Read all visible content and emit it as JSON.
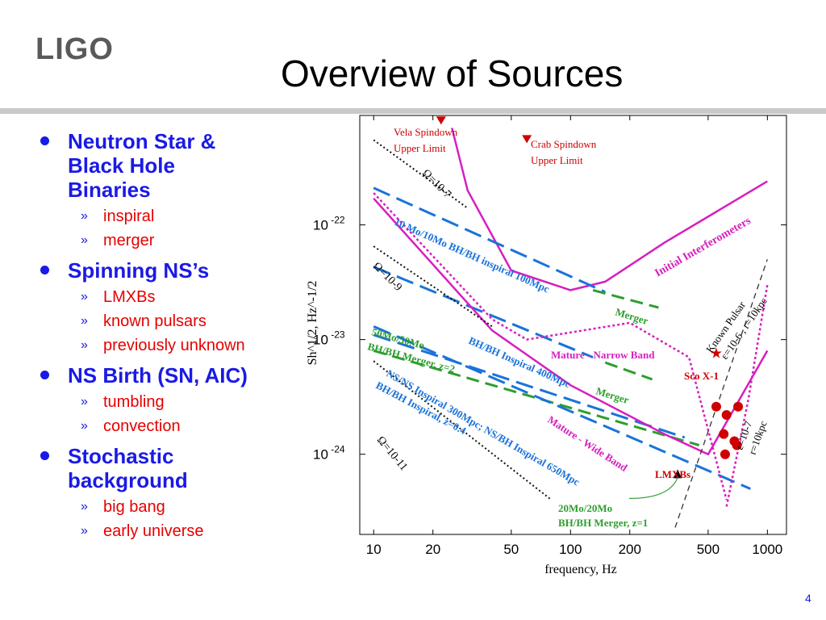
{
  "logo": "LIGO",
  "title": "Overview of Sources",
  "page_number": "4",
  "bullets": [
    {
      "label": "Neutron Star & Black Hole Binaries",
      "lines": [
        "Neutron Star &",
        "Black Hole",
        "Binaries"
      ],
      "subs": [
        "inspiral",
        "merger"
      ]
    },
    {
      "label": "Spinning NS’s",
      "lines": [
        "Spinning NS’s"
      ],
      "subs": [
        "LMXBs",
        "known pulsars",
        "previously unknown"
      ]
    },
    {
      "label": "NS Birth (SN, AIC)",
      "lines": [
        "NS Birth (SN, AIC)"
      ],
      "subs": [
        "tumbling",
        "convection"
      ]
    },
    {
      "label": "Stochastic background",
      "lines": [
        "Stochastic",
        "background"
      ],
      "subs": [
        "big bang",
        "early universe"
      ]
    }
  ],
  "colors": {
    "bullet": "#1a1ae6",
    "sub": "#e60000",
    "magenta": "#d61fbf",
    "blue": "#1a73d9",
    "green": "#2e9e2e",
    "red": "#d00000"
  },
  "chart_data": {
    "type": "line",
    "xlabel": "frequency, Hz",
    "ylabel": "Sh^1/2, Hz^-1/2",
    "xscale": "log",
    "yscale": "log",
    "x_ticks": [
      "10",
      "20",
      "50",
      "100",
      "200",
      "500",
      "1000"
    ],
    "y_ticks": [
      "10-22",
      "10-23",
      "10-24"
    ],
    "xlim": [
      8.5,
      1250
    ],
    "ylim": [
      2e-25,
      9e-22
    ],
    "grid": false,
    "curves": [
      {
        "name": "Initial Interferometers",
        "style": "magenta-solid",
        "points": [
          [
            25,
            7e-22
          ],
          [
            30,
            2e-22
          ],
          [
            50,
            4e-23
          ],
          [
            100,
            2.7e-23
          ],
          [
            150,
            3.2e-23
          ],
          [
            300,
            7e-23
          ],
          [
            1000,
            2.4e-22
          ]
        ]
      },
      {
        "name": "10 Mo/10Mo BH/BH inspiral 100Mpc",
        "style": "blue-dashed",
        "points": [
          [
            10,
            2.1e-22
          ],
          [
            150,
            2.6e-23
          ]
        ]
      },
      {
        "name": "Merger",
        "style": "green-dashed",
        "points": [
          [
            130,
            2.7e-23
          ],
          [
            280,
            1.9e-23
          ]
        ]
      },
      {
        "name": "BH/BH Inspiral 400Mpc",
        "style": "blue-dashed",
        "points": [
          [
            10,
            4.3e-23
          ],
          [
            130,
            7e-24
          ]
        ]
      },
      {
        "name": "Merger",
        "style": "green-dashed",
        "points": [
          [
            150,
            6.3e-24
          ],
          [
            260,
            4.5e-24
          ]
        ]
      },
      {
        "name": "50Mo/50Mo BH/BH Merger, z=2",
        "style": "green-dashed",
        "points": [
          [
            10,
            8e-24
          ],
          [
            450,
            1.2e-24
          ]
        ]
      },
      {
        "name": "NS/NS Inspiral 300Mpc; NS/BH Inspiral 650Mpc",
        "style": "blue-dashed",
        "points": [
          [
            10,
            1.3e-23
          ],
          [
            820,
            5e-25
          ]
        ]
      },
      {
        "name": "BH/BH Inspiral, z=0.4",
        "style": "blue-dashed",
        "points": [
          [
            10,
            1.1e-23
          ],
          [
            380,
            1.4e-24
          ]
        ]
      },
      {
        "name": "Mature - Narrow Band",
        "style": "magenta-dotted",
        "points": [
          [
            10,
            1.9e-22
          ],
          [
            40,
            1.5e-23
          ],
          [
            60,
            1e-23
          ],
          [
            200,
            1.4e-23
          ],
          [
            400,
            7e-24
          ],
          [
            620,
            4e-25
          ]
        ]
      },
      {
        "name": "Mature - Wide Band",
        "style": "magenta-solid",
        "points": [
          [
            10,
            1.7e-22
          ],
          [
            40,
            1.2e-23
          ],
          [
            100,
            4e-24
          ],
          [
            300,
            1.5e-24
          ],
          [
            500,
            1e-24
          ],
          [
            1000,
            8e-24
          ]
        ]
      },
      {
        "name": "Known Pulsar ε=10^-6, r=10kpc",
        "style": "black-dashed",
        "points": [
          [
            340,
            2.3e-25
          ],
          [
            1000,
            5e-23
          ]
        ]
      },
      {
        "name": "ε=10^-7 r=10kpc",
        "style": "magenta-dotted",
        "points": [
          [
            620,
            3.5e-25
          ],
          [
            800,
            3e-24
          ],
          [
            1000,
            3e-23
          ]
        ]
      },
      {
        "name": "Ω=10^-7",
        "style": "black-dotted",
        "points": [
          [
            10,
            5.5e-22
          ],
          [
            30,
            1.4e-22
          ]
        ]
      },
      {
        "name": "Ω=10^-9",
        "style": "black-dotted",
        "points": [
          [
            10,
            6.5e-23
          ],
          [
            40,
            1.3e-23
          ]
        ]
      },
      {
        "name": "Ω=10^-11",
        "style": "black-dotted",
        "points": [
          [
            10,
            6.5e-24
          ],
          [
            80,
            4e-25
          ]
        ]
      }
    ],
    "points": [
      {
        "name": "Sco X-1",
        "marker": "star",
        "x": 550,
        "y": 7.6e-24
      },
      {
        "name": "Vela Spindown Upper Limit",
        "marker": "triangle",
        "x": 22,
        "y": 8e-22
      },
      {
        "name": "Crab Spindown Upper Limit",
        "marker": "triangle",
        "x": 60,
        "y": 5.5e-22
      },
      {
        "name": "20Mo/20Mo BH/BH Merger, z=1",
        "marker": "arrow",
        "x": 350,
        "y": 6.7e-25
      }
    ],
    "lmxbs": {
      "name": "LMXBs",
      "points": [
        [
          550,
          2.6e-24
        ],
        [
          620,
          2.2e-24
        ],
        [
          710,
          2.6e-24
        ],
        [
          600,
          1.5e-24
        ],
        [
          680,
          1.3e-24
        ],
        [
          700,
          1.2e-24
        ],
        [
          610,
          1e-24
        ]
      ]
    },
    "labels": {
      "vela": [
        "Vela Spindown",
        "Upper Limit"
      ],
      "crab": [
        "Crab Spindown",
        "Upper Limit"
      ],
      "omega7": "Ω=10-7",
      "omega9": "Ω=10-9",
      "omega11": "Ω=10-11",
      "initial": "Initial Interferometers",
      "bh10": "10 Mo/10Mo BH/BH inspiral 100Mpc",
      "merger": "Merger",
      "bh400": "BH/BH Inspiral 400Mpc",
      "mnb": "Mature - Narrow Band",
      "bh50": [
        "50Mo/50Mo",
        "BH/BH Merger, z=2"
      ],
      "nsns": "NS/NS Inspiral 300Mpc; NS/BH Inspiral 650Mpc",
      "bhz04": "BH/BH Inspiral, z=0.4",
      "mwb": "Mature - Wide Band",
      "known": [
        "Known Pulsar",
        "ε=10-6 , r=10kpc"
      ],
      "eps7": [
        "ε=10-7",
        "r=10kpc"
      ],
      "sco": "Sco X-1",
      "lmxb": "LMXBs",
      "bh20": [
        "20Mo/20Mo",
        "BH/BH Merger, z=1"
      ]
    }
  }
}
